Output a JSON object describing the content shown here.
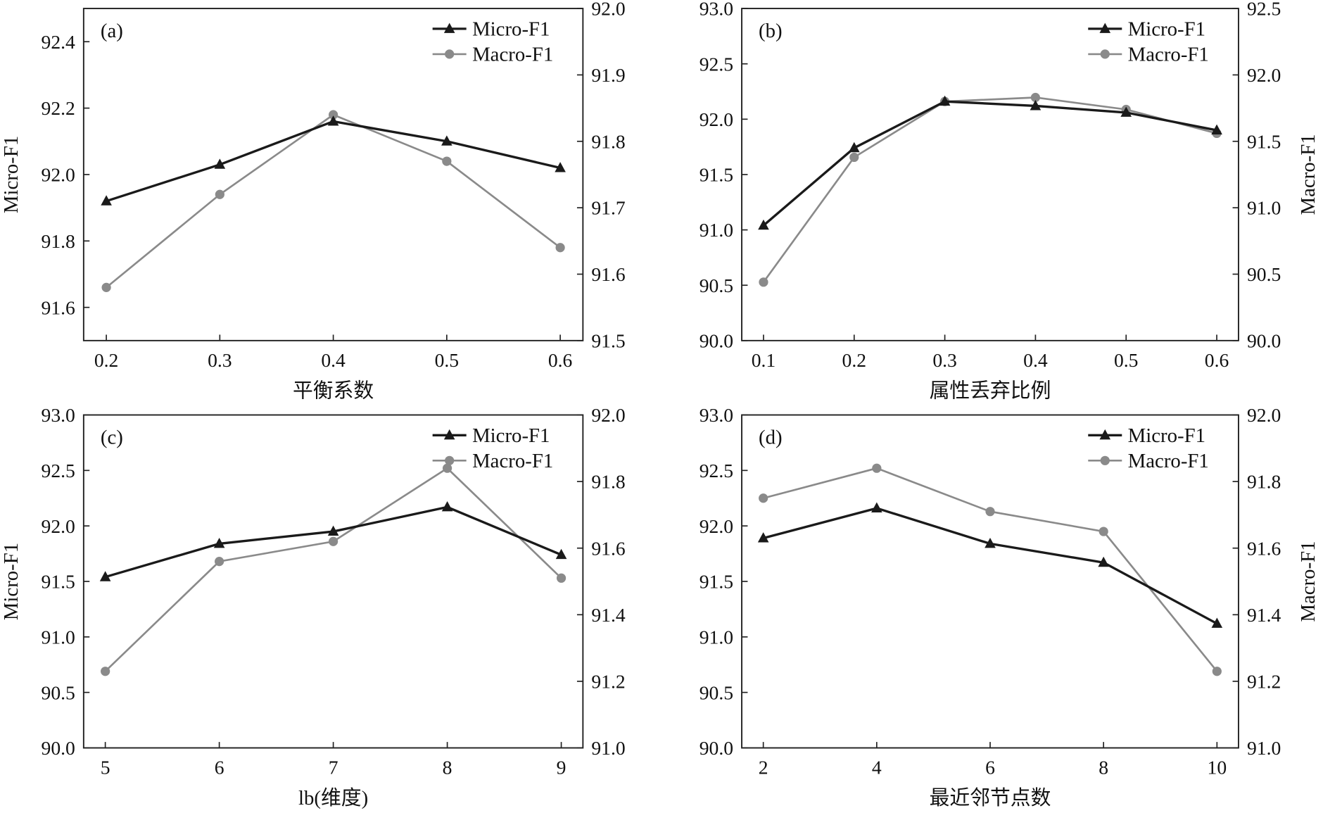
{
  "chart_data": [
    {
      "type": "line",
      "panel_label": "(a)",
      "xlabel": "平衡系数",
      "ylabel": "Micro-F1",
      "y2label": "",
      "x": [
        0.2,
        0.3,
        0.4,
        0.5,
        0.6
      ],
      "xticks": [
        "0.2",
        "0.3",
        "0.4",
        "0.5",
        "0.6"
      ],
      "xlim": [
        0.18,
        0.62
      ],
      "ylim": [
        91.5,
        92.5
      ],
      "yticks": [
        "91.6",
        "91.8",
        "92.0",
        "92.2",
        "92.4"
      ],
      "y2lim": [
        91.5,
        92.0
      ],
      "y2ticks": [
        "91.5",
        "91.6",
        "91.7",
        "91.8",
        "91.9",
        "92.0"
      ],
      "series": [
        {
          "name": "Micro-F1",
          "axis": "left",
          "marker": "triangle",
          "color": "#1a1a1a",
          "values": [
            91.92,
            92.03,
            92.16,
            92.1,
            92.02
          ]
        },
        {
          "name": "Macro-F1",
          "axis": "right",
          "marker": "circle",
          "color": "#8a8a8a",
          "values": [
            91.58,
            91.72,
            91.84,
            91.77,
            91.64
          ]
        }
      ],
      "legend": "top-right"
    },
    {
      "type": "line",
      "panel_label": "(b)",
      "xlabel": "属性丢弃比例",
      "ylabel": "",
      "y2label": "Macro-F1",
      "x": [
        0.1,
        0.2,
        0.3,
        0.4,
        0.5,
        0.6
      ],
      "xticks": [
        "0.1",
        "0.2",
        "0.3",
        "0.4",
        "0.5",
        "0.6"
      ],
      "xlim": [
        0.076,
        0.624
      ],
      "ylim": [
        90.0,
        93.0
      ],
      "yticks": [
        "90.0",
        "90.5",
        "91.0",
        "91.5",
        "92.0",
        "92.5",
        "93.0"
      ],
      "y2lim": [
        90.0,
        92.5
      ],
      "y2ticks": [
        "90.0",
        "90.5",
        "91.0",
        "91.5",
        "92.0",
        "92.5"
      ],
      "series": [
        {
          "name": "Micro-F1",
          "axis": "left",
          "marker": "triangle",
          "color": "#1a1a1a",
          "values": [
            91.04,
            91.74,
            92.16,
            92.12,
            92.06,
            91.9
          ]
        },
        {
          "name": "Macro-F1",
          "axis": "right",
          "marker": "circle",
          "color": "#8a8a8a",
          "values": [
            90.44,
            91.38,
            91.8,
            91.83,
            91.74,
            91.56
          ]
        }
      ],
      "legend": "top-right"
    },
    {
      "type": "line",
      "panel_label": "(c)",
      "xlabel": "lb(维度)",
      "ylabel": "Micro-F1",
      "y2label": "",
      "x": [
        5,
        6,
        7,
        8,
        9
      ],
      "xticks": [
        "5",
        "6",
        "7",
        "8",
        "9"
      ],
      "xlim": [
        4.81,
        9.19
      ],
      "ylim": [
        90.0,
        93.0
      ],
      "yticks": [
        "90.0",
        "90.5",
        "91.0",
        "91.5",
        "92.0",
        "92.5",
        "93.0"
      ],
      "y2lim": [
        91.0,
        92.0
      ],
      "y2ticks": [
        "91.0",
        "91.2",
        "91.4",
        "91.6",
        "91.8",
        "92.0"
      ],
      "series": [
        {
          "name": "Micro-F1",
          "axis": "left",
          "marker": "triangle",
          "color": "#1a1a1a",
          "values": [
            91.54,
            91.84,
            91.95,
            92.17,
            91.74
          ]
        },
        {
          "name": "Macro-F1",
          "axis": "right",
          "marker": "circle",
          "color": "#8a8a8a",
          "values": [
            91.23,
            91.56,
            91.62,
            91.84,
            91.51
          ]
        }
      ],
      "legend": "top-right"
    },
    {
      "type": "line",
      "panel_label": "(d)",
      "xlabel": "最近邻节点数",
      "ylabel": "",
      "y2label": "Macro-F1",
      "x": [
        2,
        4,
        6,
        8,
        10
      ],
      "xticks": [
        "2",
        "4",
        "6",
        "8",
        "10"
      ],
      "xlim": [
        1.62,
        10.38
      ],
      "ylim": [
        90.0,
        93.0
      ],
      "yticks": [
        "90.0",
        "90.5",
        "91.0",
        "91.5",
        "92.0",
        "92.5",
        "93.0"
      ],
      "y2lim": [
        91.0,
        92.0
      ],
      "y2ticks": [
        "91.0",
        "91.2",
        "91.4",
        "91.6",
        "91.8",
        "92.0"
      ],
      "series": [
        {
          "name": "Micro-F1",
          "axis": "left",
          "marker": "triangle",
          "color": "#1a1a1a",
          "values": [
            91.89,
            92.16,
            91.84,
            91.67,
            91.12
          ]
        },
        {
          "name": "Macro-F1",
          "axis": "right",
          "marker": "circle",
          "color": "#8a8a8a",
          "values": [
            91.75,
            91.84,
            91.71,
            91.65,
            91.23
          ]
        }
      ],
      "legend": "top-right"
    }
  ]
}
